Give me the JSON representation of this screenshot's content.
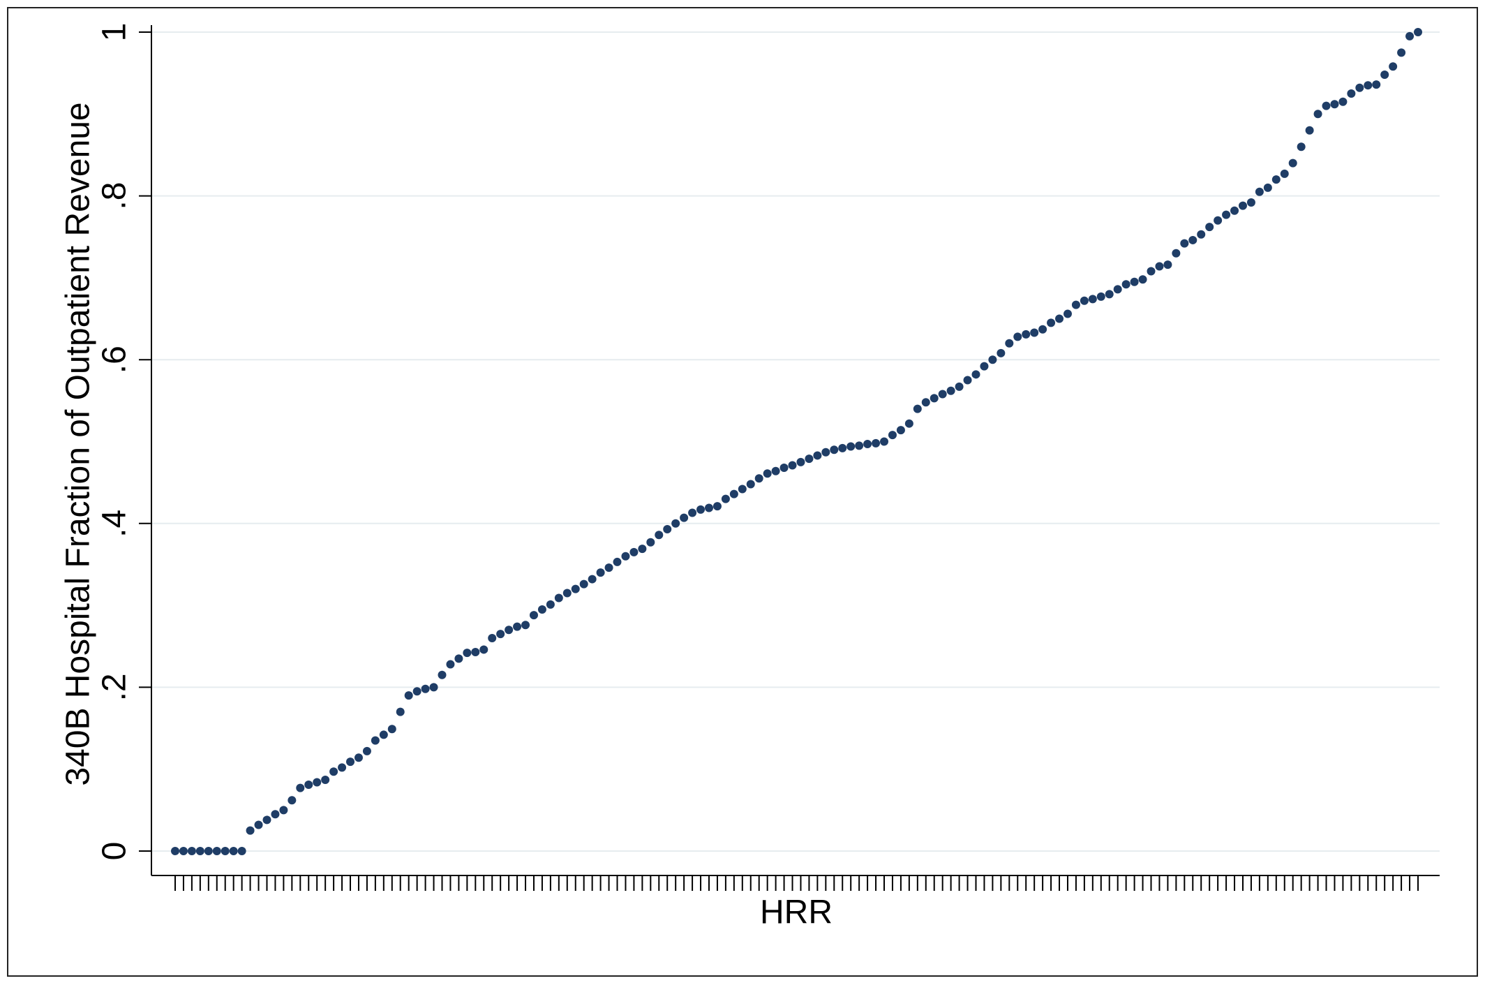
{
  "chart_data": {
    "type": "scatter",
    "y_label": "340B Hospital Fraction of Outpatient Revenue",
    "x_label": "HRR",
    "color": "#1f3d66",
    "grid": true,
    "ylim": [
      0,
      1
    ],
    "yticks": [
      0,
      {
        "value": 0.2,
        "label": ".2"
      },
      {
        "value": 0.4,
        "label": ".4"
      },
      {
        "value": 0.6,
        "label": ".6"
      },
      {
        "value": 0.8,
        "label": ".8"
      },
      1
    ],
    "categories": [
      null,
      null,
      null,
      null,
      null,
      null,
      null,
      null,
      null,
      null,
      null,
      null,
      null,
      null,
      null,
      null,
      null,
      null,
      null,
      null,
      null,
      null,
      null,
      null,
      null,
      null,
      null,
      null,
      null,
      null,
      null,
      null,
      null,
      null,
      null,
      null,
      null,
      null,
      null,
      null,
      null,
      null,
      null,
      null,
      null,
      null,
      null,
      null,
      null,
      null,
      null,
      null,
      null,
      null,
      null,
      null,
      null,
      null,
      null,
      null,
      null,
      null,
      null,
      null,
      null,
      null,
      null,
      null,
      null,
      null,
      null,
      null,
      null,
      null,
      null,
      null,
      null,
      null,
      null,
      null,
      null,
      null,
      null,
      null,
      null,
      null,
      null,
      null,
      null,
      null,
      null,
      null,
      null,
      null,
      null,
      null,
      null,
      null,
      null,
      null,
      null,
      null,
      null,
      null,
      null,
      null,
      null,
      null,
      null,
      null,
      null,
      null,
      null,
      null,
      null,
      null,
      null,
      null,
      null,
      null,
      null,
      null,
      null,
      null,
      null,
      null,
      null,
      null,
      null,
      null,
      null,
      null,
      null,
      null,
      null,
      null,
      null,
      null,
      null,
      null,
      null,
      null,
      null,
      null,
      null,
      null,
      null,
      null,
      null,
      null
    ],
    "values": [
      0,
      0,
      0,
      0,
      0,
      0,
      0,
      0,
      0,
      0.025,
      0.032,
      0.038,
      0.045,
      0.05,
      0.062,
      0.077,
      0.081,
      0.084,
      0.087,
      0.097,
      0.102,
      0.109,
      0.114,
      0.122,
      0.135,
      0.142,
      0.149,
      0.17,
      0.19,
      0.195,
      0.198,
      0.2,
      0.215,
      0.228,
      0.235,
      0.242,
      0.243,
      0.246,
      0.26,
      0.265,
      0.27,
      0.274,
      0.276,
      0.288,
      0.295,
      0.301,
      0.309,
      0.315,
      0.32,
      0.326,
      0.332,
      0.34,
      0.346,
      0.353,
      0.36,
      0.365,
      0.369,
      0.377,
      0.386,
      0.393,
      0.4,
      0.407,
      0.413,
      0.417,
      0.419,
      0.421,
      0.43,
      0.436,
      0.442,
      0.448,
      0.455,
      0.461,
      0.464,
      0.468,
      0.471,
      0.475,
      0.479,
      0.483,
      0.487,
      0.49,
      0.492,
      0.494,
      0.495,
      0.497,
      0.498,
      0.5,
      0.508,
      0.514,
      0.522,
      0.54,
      0.548,
      0.553,
      0.558,
      0.562,
      0.567,
      0.575,
      0.582,
      0.592,
      0.6,
      0.608,
      0.62,
      0.628,
      0.631,
      0.633,
      0.637,
      0.645,
      0.65,
      0.656,
      0.667,
      0.672,
      0.674,
      0.677,
      0.68,
      0.686,
      0.692,
      0.695,
      0.698,
      0.708,
      0.714,
      0.716,
      0.73,
      0.742,
      0.746,
      0.753,
      0.762,
      0.77,
      0.777,
      0.782,
      0.788,
      0.792,
      0.805,
      0.81,
      0.82,
      0.827,
      0.84,
      0.86,
      0.88,
      0.9,
      0.91,
      0.912,
      0.915,
      0.925,
      0.932,
      0.935,
      0.936,
      0.948,
      0.958,
      0.975,
      0.995,
      1.0
    ]
  }
}
